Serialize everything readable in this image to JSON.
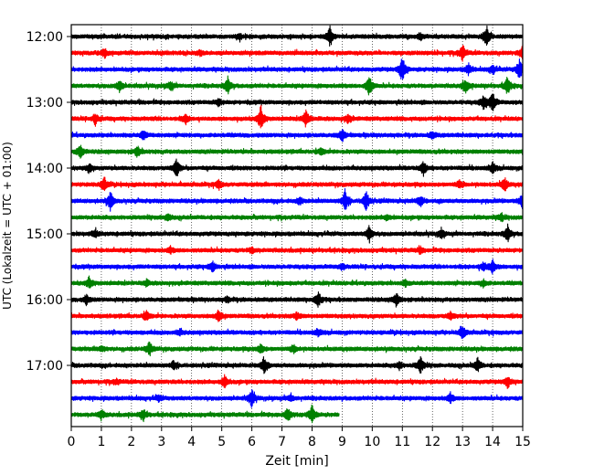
{
  "chart_data": {
    "type": "line",
    "title": "",
    "xlabel": "Zeit  [min]",
    "ylabel": "UTC (Lokalzeit = UTC + 01:00)",
    "xlim": [
      0,
      15
    ],
    "x_ticks": [
      "0",
      "1",
      "2",
      "3",
      "4",
      "5",
      "6",
      "7",
      "8",
      "9",
      "10",
      "11",
      "12",
      "13",
      "14",
      "15"
    ],
    "y_ticks": [
      "12:00",
      "13:00",
      "14:00",
      "15:00",
      "16:00",
      "17:00"
    ],
    "grid": "vertical-dotted",
    "trace_colors": [
      "#000000",
      "#ff0000",
      "#0000ff",
      "#008000"
    ],
    "series": [
      {
        "start_utc": "12:00",
        "color": "#000000",
        "events": [
          [
            8.6,
            11
          ],
          [
            13.8,
            12
          ],
          [
            11.6,
            4
          ],
          [
            5.6,
            3
          ]
        ]
      },
      {
        "start_utc": "12:15",
        "color": "#ff0000",
        "events": [
          [
            13.0,
            10
          ],
          [
            15.0,
            8
          ],
          [
            1.1,
            5
          ],
          [
            4.3,
            3
          ]
        ]
      },
      {
        "start_utc": "12:30",
        "color": "#0000ff",
        "events": [
          [
            11.0,
            15
          ],
          [
            14.9,
            12
          ],
          [
            13.2,
            6
          ],
          [
            14.0,
            5
          ]
        ]
      },
      {
        "start_utc": "12:45",
        "color": "#008000",
        "events": [
          [
            9.9,
            12
          ],
          [
            5.2,
            9
          ],
          [
            14.5,
            10
          ],
          [
            13.1,
            8
          ],
          [
            1.6,
            6
          ],
          [
            3.3,
            5
          ]
        ]
      },
      {
        "start_utc": "13:00",
        "color": "#000000",
        "events": [
          [
            14.0,
            12
          ],
          [
            13.7,
            8
          ],
          [
            4.9,
            4
          ]
        ]
      },
      {
        "start_utc": "13:15",
        "color": "#ff0000",
        "events": [
          [
            6.3,
            15
          ],
          [
            7.8,
            10
          ],
          [
            0.8,
            6
          ],
          [
            9.2,
            5
          ],
          [
            3.8,
            5
          ]
        ]
      },
      {
        "start_utc": "13:30",
        "color": "#0000ff",
        "events": [
          [
            9.0,
            7
          ],
          [
            2.4,
            5
          ],
          [
            12.0,
            4
          ]
        ]
      },
      {
        "start_utc": "13:45",
        "color": "#008000",
        "events": [
          [
            0.3,
            8
          ],
          [
            2.2,
            6
          ],
          [
            8.3,
            4
          ]
        ]
      },
      {
        "start_utc": "14:00",
        "color": "#000000",
        "events": [
          [
            3.5,
            10
          ],
          [
            11.7,
            7
          ],
          [
            14.0,
            6
          ],
          [
            0.6,
            5
          ]
        ]
      },
      {
        "start_utc": "14:15",
        "color": "#ff0000",
        "events": [
          [
            1.1,
            8
          ],
          [
            14.4,
            8
          ],
          [
            4.9,
            5
          ],
          [
            12.9,
            4
          ]
        ]
      },
      {
        "start_utc": "14:30",
        "color": "#0000ff",
        "events": [
          [
            9.1,
            13
          ],
          [
            9.8,
            11
          ],
          [
            1.3,
            10
          ],
          [
            15.0,
            9
          ],
          [
            11.6,
            6
          ],
          [
            7.6,
            4
          ]
        ]
      },
      {
        "start_utc": "14:45",
        "color": "#008000",
        "events": [
          [
            3.2,
            4
          ],
          [
            14.3,
            4
          ],
          [
            10.5,
            3
          ]
        ]
      },
      {
        "start_utc": "15:00",
        "color": "#000000",
        "events": [
          [
            9.9,
            9
          ],
          [
            14.5,
            9
          ],
          [
            12.3,
            5
          ],
          [
            0.8,
            4
          ]
        ]
      },
      {
        "start_utc": "15:15",
        "color": "#ff0000",
        "events": [
          [
            6.0,
            3
          ],
          [
            11.6,
            3
          ],
          [
            3.3,
            3
          ]
        ]
      },
      {
        "start_utc": "15:30",
        "color": "#0000ff",
        "events": [
          [
            14.0,
            8
          ],
          [
            4.7,
            6
          ],
          [
            13.7,
            5
          ],
          [
            9.0,
            3
          ]
        ]
      },
      {
        "start_utc": "15:45",
        "color": "#008000",
        "events": [
          [
            0.6,
            7
          ],
          [
            13.7,
            4
          ],
          [
            11.1,
            3
          ],
          [
            2.5,
            3
          ]
        ]
      },
      {
        "start_utc": "16:00",
        "color": "#000000",
        "events": [
          [
            8.2,
            9
          ],
          [
            10.8,
            7
          ],
          [
            0.5,
            5
          ],
          [
            5.2,
            3
          ]
        ]
      },
      {
        "start_utc": "16:15",
        "color": "#ff0000",
        "events": [
          [
            4.9,
            7
          ],
          [
            2.5,
            6
          ],
          [
            7.5,
            4
          ],
          [
            12.6,
            4
          ]
        ]
      },
      {
        "start_utc": "16:30",
        "color": "#0000ff",
        "events": [
          [
            13.0,
            8
          ],
          [
            8.2,
            4
          ],
          [
            3.6,
            3
          ]
        ]
      },
      {
        "start_utc": "16:45",
        "color": "#008000",
        "events": [
          [
            2.6,
            8
          ],
          [
            6.3,
            5
          ],
          [
            7.4,
            4
          ],
          [
            1.0,
            3
          ]
        ]
      },
      {
        "start_utc": "17:00",
        "color": "#000000",
        "events": [
          [
            6.4,
            10
          ],
          [
            11.6,
            10
          ],
          [
            13.5,
            8
          ],
          [
            3.4,
            5
          ],
          [
            10.9,
            4
          ]
        ]
      },
      {
        "start_utc": "17:15",
        "color": "#ff0000",
        "events": [
          [
            5.1,
            7
          ],
          [
            14.5,
            6
          ],
          [
            1.5,
            3
          ]
        ]
      },
      {
        "start_utc": "17:30",
        "color": "#0000ff",
        "events": [
          [
            6.0,
            10
          ],
          [
            12.6,
            5
          ],
          [
            7.3,
            4
          ],
          [
            2.9,
            3
          ]
        ]
      },
      {
        "start_utc": "17:45",
        "color": "#008000",
        "events": [
          [
            8.0,
            11
          ],
          [
            7.2,
            8
          ],
          [
            1.0,
            5
          ],
          [
            2.4,
            6
          ]
        ],
        "end_x": 8.9
      }
    ]
  }
}
